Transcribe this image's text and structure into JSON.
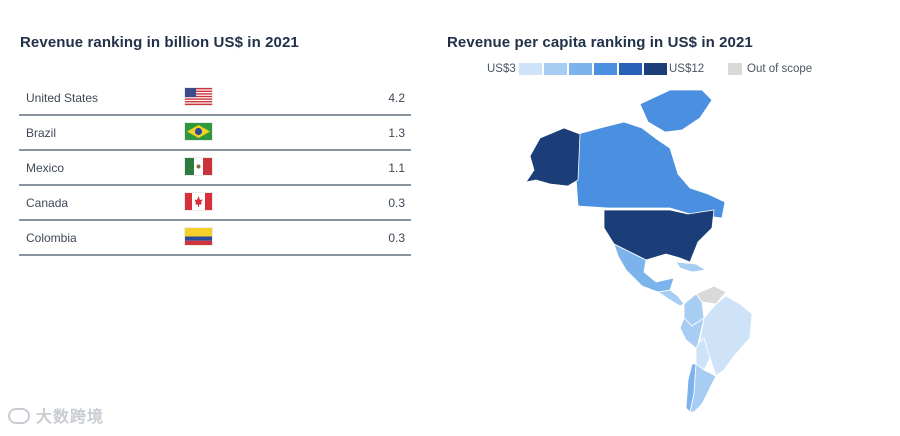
{
  "left_panel": {
    "title": "Revenue ranking in billion US$ in 2021",
    "rows": [
      {
        "country": "United States",
        "flag": "us-flag",
        "value": "4.2"
      },
      {
        "country": "Brazil",
        "flag": "brazil-flag",
        "value": "1.3"
      },
      {
        "country": "Mexico",
        "flag": "mexico-flag",
        "value": "1.1"
      },
      {
        "country": "Canada",
        "flag": "canada-flag",
        "value": "0.3"
      },
      {
        "country": "Colombia",
        "flag": "colombia-flag",
        "value": "0.3"
      }
    ]
  },
  "right_panel": {
    "title": "Revenue per capita ranking in US$ in 2021",
    "legend": {
      "min_label": "US$3",
      "max_label": "US$12",
      "out_of_scope_label": "Out of scope",
      "scale_colors": [
        "#cfe3f8",
        "#a8cdf3",
        "#7cb3ec",
        "#4a8fe0",
        "#2762b8",
        "#1b3d78"
      ],
      "out_of_scope_color": "#d9d9d9"
    },
    "map_regions": [
      {
        "name": "alaska",
        "color": "#1b3d78"
      },
      {
        "name": "canada",
        "color": "#4a8fe0"
      },
      {
        "name": "greenland",
        "color": "#4a8fe0"
      },
      {
        "name": "united-states",
        "color": "#1b3d78"
      },
      {
        "name": "mexico",
        "color": "#7cb3ec"
      },
      {
        "name": "central-america",
        "color": "#a8cdf3"
      },
      {
        "name": "caribbean",
        "color": "#a8cdf3"
      },
      {
        "name": "venezuela",
        "color": "#d9d9d9"
      },
      {
        "name": "colombia",
        "color": "#a8cdf3"
      },
      {
        "name": "brazil",
        "color": "#cfe3f8"
      },
      {
        "name": "peru",
        "color": "#a8cdf3"
      },
      {
        "name": "bolivia",
        "color": "#cfe3f8"
      },
      {
        "name": "chile",
        "color": "#7cb3ec"
      },
      {
        "name": "argentina",
        "color": "#a8cdf3"
      }
    ]
  },
  "watermark": {
    "text": "大数跨境",
    "icon": "logo-icon"
  }
}
